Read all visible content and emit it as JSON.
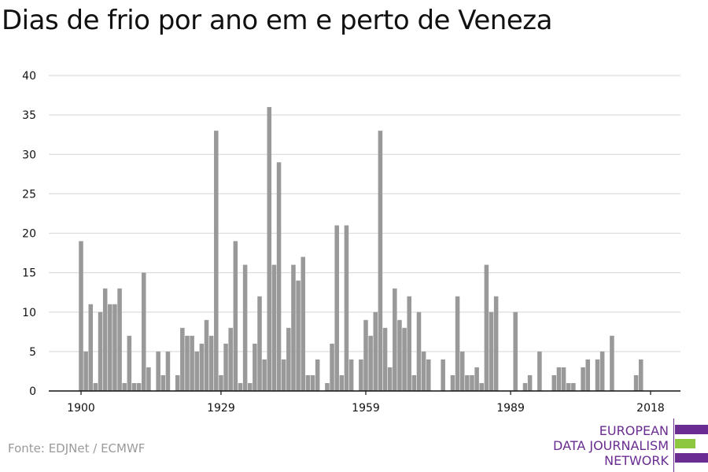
{
  "title": "Dias de frio por ano em e perto de Veneza",
  "source": "Fonte: EDJNet / ECMWF",
  "logo": {
    "lines": [
      "EUROPEAN",
      "DATA JOURNALISM",
      "NETWORK"
    ],
    "colors": {
      "purple": "#6a2c91",
      "green": "#8dc63f"
    }
  },
  "colors": {
    "bar": "#999999",
    "grid": "#dddddd",
    "axis": "#111111"
  },
  "chart_data": {
    "type": "bar",
    "title": "Dias de frio por ano em e perto de Veneza",
    "xlabel": "",
    "ylabel": "",
    "ylim": [
      0,
      40
    ],
    "yticks": [
      0,
      5,
      10,
      15,
      20,
      25,
      30,
      35,
      40
    ],
    "xticks": [
      1900,
      1929,
      1959,
      1989,
      2018
    ],
    "grid": true,
    "x": [
      1900,
      1901,
      1902,
      1903,
      1904,
      1905,
      1906,
      1907,
      1908,
      1909,
      1910,
      1911,
      1912,
      1913,
      1914,
      1915,
      1916,
      1917,
      1918,
      1919,
      1920,
      1921,
      1922,
      1923,
      1924,
      1925,
      1926,
      1927,
      1928,
      1929,
      1930,
      1931,
      1932,
      1933,
      1934,
      1935,
      1936,
      1937,
      1938,
      1939,
      1940,
      1941,
      1942,
      1943,
      1944,
      1945,
      1946,
      1947,
      1948,
      1949,
      1950,
      1951,
      1952,
      1953,
      1954,
      1955,
      1956,
      1957,
      1958,
      1959,
      1960,
      1961,
      1962,
      1963,
      1964,
      1965,
      1966,
      1967,
      1968,
      1969,
      1970,
      1971,
      1972,
      1973,
      1974,
      1975,
      1976,
      1977,
      1978,
      1979,
      1980,
      1981,
      1982,
      1983,
      1984,
      1985,
      1986,
      1987,
      1988,
      1989,
      1990,
      1991,
      1992,
      1993,
      1994,
      1995,
      1996,
      1997,
      1998,
      1999,
      2000,
      2001,
      2002,
      2003,
      2004,
      2005,
      2006,
      2007,
      2008,
      2009,
      2010,
      2011,
      2012,
      2013,
      2014,
      2015,
      2016,
      2017,
      2018
    ],
    "values": [
      19,
      5,
      11,
      1,
      10,
      13,
      11,
      11,
      13,
      1,
      7,
      1,
      1,
      15,
      3,
      0,
      5,
      2,
      5,
      0,
      2,
      8,
      7,
      7,
      5,
      6,
      9,
      7,
      33,
      2,
      6,
      8,
      19,
      1,
      16,
      1,
      6,
      12,
      4,
      36,
      16,
      29,
      4,
      8,
      16,
      14,
      17,
      2,
      2,
      4,
      0,
      1,
      6,
      21,
      2,
      21,
      4,
      0,
      4,
      9,
      7,
      10,
      33,
      8,
      3,
      13,
      9,
      8,
      12,
      2,
      10,
      5,
      4,
      0,
      0,
      4,
      0,
      2,
      12,
      5,
      2,
      2,
      3,
      1,
      16,
      10,
      12,
      0,
      0,
      0,
      10,
      0,
      1,
      2,
      0,
      5,
      0,
      0,
      2,
      3,
      3,
      1,
      1,
      0,
      3,
      4,
      0,
      4,
      5,
      0,
      7,
      0,
      0,
      0,
      0,
      2,
      4,
      0,
      0
    ]
  }
}
